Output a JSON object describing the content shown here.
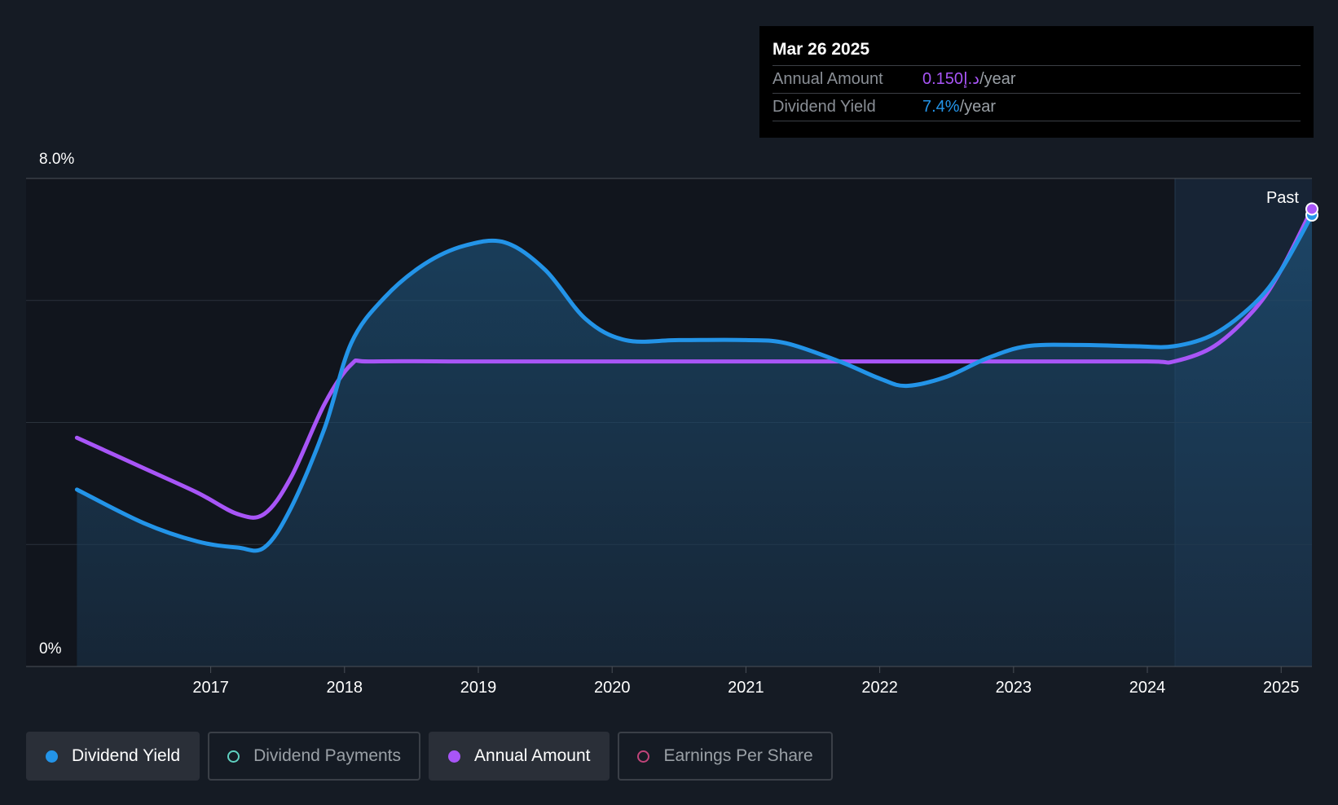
{
  "tooltip": {
    "date": "Mar 26 2025",
    "rows": [
      {
        "label": "Annual Amount",
        "value": "0.150د.إ",
        "unit": "/year"
      },
      {
        "label": "Dividend Yield",
        "value": "7.4%",
        "unit": "/year"
      }
    ]
  },
  "legend": [
    {
      "label": "Dividend Yield",
      "active": true,
      "color": "#2394e8"
    },
    {
      "label": "Dividend Payments",
      "active": false,
      "color": "#5fd0c0"
    },
    {
      "label": "Annual Amount",
      "active": true,
      "color": "#a855f7"
    },
    {
      "label": "Earnings Per Share",
      "active": false,
      "color": "#c0447a"
    }
  ],
  "chart_data": {
    "type": "line",
    "y_axis_labels": [
      "8.0%",
      "0%"
    ],
    "ylim": [
      0,
      8
    ],
    "xlim": [
      2015.62,
      2025.23
    ],
    "x_ticks": [
      2017,
      2018,
      2019,
      2020,
      2021,
      2022,
      2023,
      2024,
      2025
    ],
    "past_label": "Past",
    "past_start": 2024.23,
    "series": [
      {
        "name": "Dividend Yield",
        "color": "#2394e8",
        "x": [
          2016.0,
          2016.5,
          2016.9,
          2017.2,
          2017.4,
          2017.6,
          2017.85,
          2018.05,
          2018.3,
          2018.6,
          2018.9,
          2019.2,
          2019.5,
          2019.8,
          2020.1,
          2020.5,
          2021.0,
          2021.3,
          2021.7,
          2022.0,
          2022.2,
          2022.5,
          2022.8,
          2023.1,
          2023.5,
          2023.9,
          2024.2,
          2024.5,
          2024.8,
          2025.0,
          2025.23
        ],
        "y": [
          2.9,
          2.35,
          2.05,
          1.95,
          1.95,
          2.6,
          3.9,
          5.3,
          6.05,
          6.6,
          6.9,
          6.95,
          6.5,
          5.7,
          5.35,
          5.35,
          5.35,
          5.3,
          5.0,
          4.72,
          4.6,
          4.75,
          5.05,
          5.25,
          5.27,
          5.25,
          5.25,
          5.45,
          5.95,
          6.5,
          7.4
        ]
      },
      {
        "name": "Annual Amount",
        "color": "#a855f7",
        "x": [
          2016.0,
          2016.5,
          2016.9,
          2017.2,
          2017.4,
          2017.6,
          2017.85,
          2018.05,
          2018.2,
          2019.0,
          2020.0,
          2021.0,
          2022.0,
          2023.0,
          2024.0,
          2024.2,
          2024.5,
          2024.8,
          2025.0,
          2025.23
        ],
        "y": [
          3.75,
          3.25,
          2.85,
          2.5,
          2.5,
          3.1,
          4.3,
          4.95,
          5.0,
          5.0,
          5.0,
          5.0,
          5.0,
          5.0,
          5.0,
          5.0,
          5.25,
          5.85,
          6.5,
          7.5
        ]
      }
    ]
  }
}
